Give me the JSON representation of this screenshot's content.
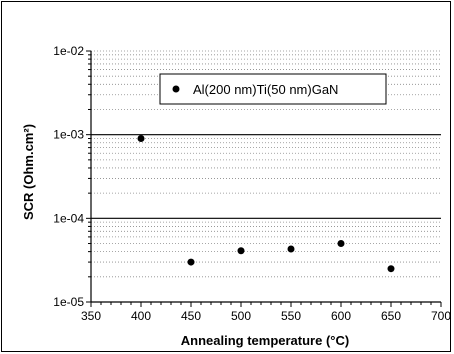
{
  "chart_data": {
    "type": "scatter",
    "xlabel": "Annealing temperature (°C)",
    "ylabel": "SCR (Ohm.cm²)",
    "x_scale": "linear",
    "y_scale": "log",
    "xlim": [
      350,
      700
    ],
    "ylim": [
      1e-05,
      0.01
    ],
    "x_ticks": [
      350,
      400,
      450,
      500,
      550,
      600,
      650,
      700
    ],
    "x_tick_labels": [
      "350",
      "400",
      "450",
      "500",
      "550",
      "600",
      "650",
      "700"
    ],
    "y_ticks": [
      1e-05,
      0.0001,
      0.001,
      0.01
    ],
    "y_tick_labels": [
      "1e-05",
      "1e-04",
      "1e-03",
      "1e-02"
    ],
    "grid": "horizontal major (solid) and minor (dotted)",
    "legend_position": "top-center",
    "series": [
      {
        "name": "Al(200 nm)Ti(50 nm)GaN",
        "marker": "circle",
        "color": "#000000",
        "x": [
          400,
          450,
          500,
          550,
          600,
          650
        ],
        "y": [
          0.0009,
          3e-05,
          4.1e-05,
          4.3e-05,
          5e-05,
          2.5e-05
        ]
      }
    ]
  }
}
